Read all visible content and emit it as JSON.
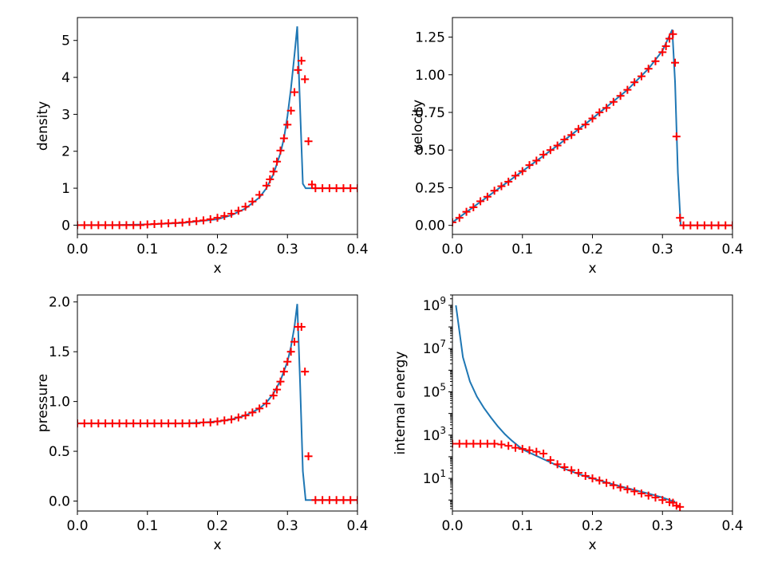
{
  "chart_data": [
    {
      "type": "line",
      "xlabel": "x",
      "ylabel": "density",
      "xlim": [
        0.0,
        0.4
      ],
      "ylim": [
        -0.25,
        5.62
      ],
      "yscale": "linear",
      "xticks": [
        0.0,
        0.1,
        0.2,
        0.3,
        0.4
      ],
      "xtick_labels": [
        "0.0",
        "0.1",
        "0.2",
        "0.3",
        "0.4"
      ],
      "yticks": [
        0,
        1,
        2,
        3,
        4,
        5
      ],
      "ytick_labels": [
        "0",
        "1",
        "2",
        "3",
        "4",
        "5"
      ],
      "colors": {
        "line": "#1f77b4",
        "markers": "#ff0000"
      },
      "series": [
        {
          "style": "line",
          "x": [
            0.005,
            0.05,
            0.1,
            0.15,
            0.2,
            0.22,
            0.24,
            0.26,
            0.27,
            0.28,
            0.29,
            0.295,
            0.3,
            0.305,
            0.31,
            0.314,
            0.318,
            0.322,
            0.326,
            0.33,
            0.35,
            0.4
          ],
          "y": [
            0.0,
            0.0,
            0.02,
            0.06,
            0.16,
            0.27,
            0.45,
            0.75,
            1.0,
            1.38,
            1.95,
            2.35,
            2.95,
            3.7,
            4.6,
            5.38,
            3.2,
            1.12,
            1.0,
            1.0,
            1.0,
            1.0
          ]
        },
        {
          "style": "markers",
          "x": [
            0.0,
            0.01,
            0.02,
            0.03,
            0.04,
            0.05,
            0.06,
            0.07,
            0.08,
            0.09,
            0.1,
            0.11,
            0.12,
            0.13,
            0.14,
            0.15,
            0.16,
            0.17,
            0.18,
            0.19,
            0.2,
            0.21,
            0.22,
            0.23,
            0.24,
            0.25,
            0.26,
            0.27,
            0.275,
            0.28,
            0.285,
            0.29,
            0.295,
            0.3,
            0.305,
            0.31,
            0.315,
            0.32,
            0.325,
            0.33,
            0.335,
            0.34,
            0.35,
            0.36,
            0.37,
            0.38,
            0.39,
            0.4
          ],
          "y": [
            0.0,
            0.0,
            0.0,
            0.0,
            0.0,
            0.0,
            0.0,
            0.0,
            0.0,
            0.0,
            0.02,
            0.03,
            0.04,
            0.05,
            0.06,
            0.07,
            0.09,
            0.11,
            0.13,
            0.16,
            0.2,
            0.25,
            0.31,
            0.39,
            0.5,
            0.64,
            0.82,
            1.07,
            1.24,
            1.45,
            1.72,
            2.02,
            2.35,
            2.72,
            3.1,
            3.6,
            4.2,
            4.45,
            3.95,
            2.27,
            1.1,
            1.0,
            1.0,
            1.0,
            1.0,
            1.0,
            1.0,
            1.0
          ]
        }
      ]
    },
    {
      "type": "line",
      "xlabel": "x",
      "ylabel": "velocity",
      "xlim": [
        0.0,
        0.4
      ],
      "ylim": [
        -0.06,
        1.38
      ],
      "yscale": "linear",
      "xticks": [
        0.0,
        0.1,
        0.2,
        0.3,
        0.4
      ],
      "xtick_labels": [
        "0.0",
        "0.1",
        "0.2",
        "0.3",
        "0.4"
      ],
      "yticks": [
        0.0,
        0.25,
        0.5,
        0.75,
        1.0,
        1.25
      ],
      "ytick_labels": [
        "0.00",
        "0.25",
        "0.50",
        "0.75",
        "1.00",
        "1.25"
      ],
      "colors": {
        "line": "#1f77b4",
        "markers": "#ff0000"
      },
      "series": [
        {
          "style": "line",
          "x": [
            0.0,
            0.05,
            0.1,
            0.15,
            0.2,
            0.25,
            0.28,
            0.3,
            0.31,
            0.314,
            0.318,
            0.322,
            0.326,
            0.33,
            0.35,
            0.4
          ],
          "y": [
            0.02,
            0.19,
            0.36,
            0.53,
            0.71,
            0.9,
            1.04,
            1.16,
            1.26,
            1.3,
            0.95,
            0.35,
            0.0,
            0.0,
            0.0,
            0.0
          ]
        },
        {
          "style": "markers",
          "x": [
            0.0,
            0.01,
            0.02,
            0.03,
            0.04,
            0.05,
            0.06,
            0.07,
            0.08,
            0.09,
            0.1,
            0.11,
            0.12,
            0.13,
            0.14,
            0.15,
            0.16,
            0.17,
            0.18,
            0.19,
            0.2,
            0.21,
            0.22,
            0.23,
            0.24,
            0.25,
            0.26,
            0.27,
            0.28,
            0.29,
            0.3,
            0.305,
            0.31,
            0.315,
            0.318,
            0.32,
            0.325,
            0.33,
            0.34,
            0.35,
            0.36,
            0.37,
            0.38,
            0.39,
            0.4
          ],
          "y": [
            0.02,
            0.05,
            0.09,
            0.12,
            0.16,
            0.19,
            0.23,
            0.26,
            0.29,
            0.33,
            0.36,
            0.4,
            0.43,
            0.47,
            0.5,
            0.53,
            0.57,
            0.6,
            0.64,
            0.67,
            0.71,
            0.75,
            0.78,
            0.82,
            0.86,
            0.9,
            0.95,
            0.99,
            1.04,
            1.09,
            1.15,
            1.19,
            1.24,
            1.27,
            1.08,
            0.59,
            0.05,
            0.0,
            0.0,
            0.0,
            0.0,
            0.0,
            0.0,
            0.0,
            0.0
          ]
        }
      ]
    },
    {
      "type": "line",
      "xlabel": "x",
      "ylabel": "pressure",
      "xlim": [
        0.0,
        0.4
      ],
      "ylim": [
        -0.1,
        2.07
      ],
      "yscale": "linear",
      "xticks": [
        0.0,
        0.1,
        0.2,
        0.3,
        0.4
      ],
      "xtick_labels": [
        "0.0",
        "0.1",
        "0.2",
        "0.3",
        "0.4"
      ],
      "yticks": [
        0.0,
        0.5,
        1.0,
        1.5,
        2.0
      ],
      "ytick_labels": [
        "0.0",
        "0.5",
        "1.0",
        "1.5",
        "2.0"
      ],
      "colors": {
        "line": "#1f77b4",
        "markers": "#ff0000"
      },
      "series": [
        {
          "style": "line",
          "x": [
            0.0,
            0.05,
            0.1,
            0.15,
            0.18,
            0.2,
            0.22,
            0.24,
            0.26,
            0.27,
            0.28,
            0.29,
            0.3,
            0.305,
            0.31,
            0.314,
            0.318,
            0.322,
            0.326,
            0.33,
            0.35,
            0.4
          ],
          "y": [
            0.78,
            0.78,
            0.78,
            0.78,
            0.79,
            0.8,
            0.82,
            0.86,
            0.93,
            0.99,
            1.08,
            1.21,
            1.4,
            1.55,
            1.75,
            1.98,
            1.2,
            0.3,
            0.01,
            0.01,
            0.01,
            0.01
          ]
        },
        {
          "style": "markers",
          "x": [
            0.0,
            0.01,
            0.02,
            0.03,
            0.04,
            0.05,
            0.06,
            0.07,
            0.08,
            0.09,
            0.1,
            0.11,
            0.12,
            0.13,
            0.14,
            0.15,
            0.16,
            0.17,
            0.18,
            0.19,
            0.2,
            0.21,
            0.22,
            0.23,
            0.24,
            0.25,
            0.26,
            0.27,
            0.28,
            0.285,
            0.29,
            0.295,
            0.3,
            0.305,
            0.31,
            0.315,
            0.32,
            0.325,
            0.33,
            0.34,
            0.35,
            0.36,
            0.37,
            0.38,
            0.39,
            0.4
          ],
          "y": [
            0.78,
            0.78,
            0.78,
            0.78,
            0.78,
            0.78,
            0.78,
            0.78,
            0.78,
            0.78,
            0.78,
            0.78,
            0.78,
            0.78,
            0.78,
            0.78,
            0.78,
            0.78,
            0.79,
            0.79,
            0.8,
            0.81,
            0.82,
            0.84,
            0.86,
            0.89,
            0.93,
            0.98,
            1.06,
            1.12,
            1.2,
            1.3,
            1.4,
            1.5,
            1.6,
            1.75,
            1.75,
            1.3,
            0.45,
            0.01,
            0.01,
            0.01,
            0.01,
            0.01,
            0.01,
            0.01
          ]
        }
      ]
    },
    {
      "type": "line",
      "xlabel": "x",
      "ylabel": "internal energy",
      "xlim": [
        0.0,
        0.4
      ],
      "ylim": [
        0.31,
        3000000000
      ],
      "yscale": "log",
      "xticks": [
        0.0,
        0.1,
        0.2,
        0.3,
        0.4
      ],
      "xtick_labels": [
        "0.0",
        "0.1",
        "0.2",
        "0.3",
        "0.4"
      ],
      "yticks": [
        10,
        1000,
        100000,
        10000000,
        1000000000
      ],
      "ytick_labels": [
        "10",
        "10",
        "10",
        "10",
        "10"
      ],
      "ytick_exponents": [
        "1",
        "3",
        "5",
        "7",
        "9"
      ],
      "colors": {
        "line": "#1f77b4",
        "markers": "#ff0000"
      },
      "series": [
        {
          "style": "line",
          "x": [
            0.005,
            0.015,
            0.025,
            0.035,
            0.045,
            0.055,
            0.065,
            0.075,
            0.085,
            0.095,
            0.1,
            0.12,
            0.14,
            0.16,
            0.18,
            0.2,
            0.22,
            0.24,
            0.26,
            0.28,
            0.3,
            0.31,
            0.315,
            0.318
          ],
          "y": [
            1000000000,
            4000000,
            300000,
            60000,
            18000,
            6500,
            2500,
            1100,
            550,
            300,
            220,
            110,
            55,
            28,
            16,
            10,
            6.5,
            4.3,
            2.9,
            2.0,
            1.3,
            1.0,
            0.9,
            0.85
          ]
        },
        {
          "style": "markers",
          "x": [
            0.0,
            0.01,
            0.02,
            0.03,
            0.04,
            0.05,
            0.06,
            0.07,
            0.08,
            0.09,
            0.1,
            0.11,
            0.12,
            0.13,
            0.14,
            0.15,
            0.16,
            0.17,
            0.18,
            0.19,
            0.2,
            0.21,
            0.22,
            0.23,
            0.24,
            0.25,
            0.26,
            0.27,
            0.28,
            0.29,
            0.3,
            0.31,
            0.315,
            0.32,
            0.325
          ],
          "y": [
            400,
            400,
            400,
            400,
            400,
            400,
            400,
            370,
            320,
            260,
            230,
            200,
            170,
            140,
            70,
            45,
            33,
            24,
            18,
            13,
            10,
            8,
            6.2,
            4.8,
            3.8,
            3.1,
            2.5,
            2.0,
            1.6,
            1.3,
            1.0,
            0.8,
            0.75,
            0.55,
            0.48
          ]
        }
      ]
    }
  ]
}
